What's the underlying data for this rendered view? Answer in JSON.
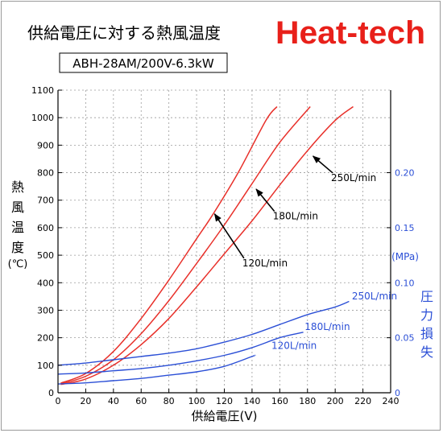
{
  "title": "供給電圧に対する熱風温度",
  "brand": "Heat-tech",
  "model": "ABH-28AM/200V-6.3kW",
  "colors": {
    "temperature": "#e8302a",
    "pressure": "#2b4fd6",
    "brand": "#e8201a",
    "axis": "#000000",
    "grid": "#9a9a9a"
  },
  "chart_data": {
    "type": "line",
    "title": "供給電圧に対する熱風温度",
    "xlabel": "供給電圧(V)",
    "ylabel_chars": [
      "熱",
      "風",
      "温",
      "度"
    ],
    "ylabel_unit": "(℃)",
    "y2label_unit": "(MPa)",
    "y2label_chars": [
      "圧",
      "力",
      "損",
      "失"
    ],
    "xlim": [
      0,
      240
    ],
    "ylim": [
      0,
      1100
    ],
    "y2lim": [
      0,
      0.275
    ],
    "xticks": [
      "0",
      "20",
      "40",
      "60",
      "80",
      "100",
      "120",
      "140",
      "160",
      "180",
      "200",
      "220",
      "240"
    ],
    "yticks": [
      "0",
      "100",
      "200",
      "300",
      "400",
      "500",
      "600",
      "700",
      "800",
      "900",
      "1000",
      "1100"
    ],
    "y2ticks": [
      "0",
      "0.05",
      "0.10",
      "0.15",
      "0.20"
    ],
    "grid": true,
    "temperature_series": [
      {
        "name": "120L/min",
        "points": [
          [
            2,
            35
          ],
          [
            20,
            70
          ],
          [
            40,
            150
          ],
          [
            60,
            270
          ],
          [
            80,
            410
          ],
          [
            100,
            560
          ],
          [
            112,
            650
          ],
          [
            130,
            800
          ],
          [
            150,
            990
          ],
          [
            158,
            1040
          ]
        ]
      },
      {
        "name": "180L/min",
        "points": [
          [
            2,
            32
          ],
          [
            20,
            60
          ],
          [
            40,
            120
          ],
          [
            60,
            215
          ],
          [
            80,
            335
          ],
          [
            100,
            470
          ],
          [
            120,
            610
          ],
          [
            140,
            760
          ],
          [
            160,
            910
          ],
          [
            182,
            1040
          ]
        ]
      },
      {
        "name": "250L/min",
        "points": [
          [
            2,
            30
          ],
          [
            20,
            50
          ],
          [
            40,
            100
          ],
          [
            60,
            175
          ],
          [
            80,
            270
          ],
          [
            100,
            385
          ],
          [
            120,
            505
          ],
          [
            140,
            625
          ],
          [
            160,
            755
          ],
          [
            180,
            880
          ],
          [
            200,
            990
          ],
          [
            213,
            1040
          ]
        ]
      }
    ],
    "pressure_series": [
      {
        "name": "120L/min",
        "points": [
          [
            0,
            0.008
          ],
          [
            20,
            0.009
          ],
          [
            40,
            0.011
          ],
          [
            60,
            0.013
          ],
          [
            80,
            0.016
          ],
          [
            100,
            0.019
          ],
          [
            120,
            0.024
          ],
          [
            140,
            0.033
          ],
          [
            142,
            0.034
          ]
        ]
      },
      {
        "name": "180L/min",
        "points": [
          [
            0,
            0.017
          ],
          [
            20,
            0.018
          ],
          [
            40,
            0.02
          ],
          [
            60,
            0.022
          ],
          [
            80,
            0.025
          ],
          [
            100,
            0.029
          ],
          [
            120,
            0.034
          ],
          [
            140,
            0.041
          ],
          [
            160,
            0.05
          ],
          [
            177,
            0.055
          ]
        ]
      },
      {
        "name": "250L/min",
        "points": [
          [
            0,
            0.025
          ],
          [
            20,
            0.027
          ],
          [
            40,
            0.03
          ],
          [
            60,
            0.033
          ],
          [
            80,
            0.036
          ],
          [
            100,
            0.04
          ],
          [
            120,
            0.046
          ],
          [
            140,
            0.053
          ],
          [
            160,
            0.062
          ],
          [
            180,
            0.071
          ],
          [
            200,
            0.078
          ],
          [
            210,
            0.083
          ]
        ]
      }
    ],
    "temperature_labels": [
      {
        "text": "250L/min",
        "label_at": [
          197,
          770
        ],
        "arrow_to": [
          184,
          860
        ]
      },
      {
        "text": "180L/min",
        "label_at": [
          155,
          630
        ],
        "arrow_to": [
          143,
          740
        ]
      },
      {
        "text": "120L/min",
        "label_at": [
          133,
          460
        ],
        "arrow_to": [
          113,
          650
        ]
      }
    ],
    "pressure_labels": [
      {
        "text": "250L/min",
        "label_at": [
          212,
          0.085
        ]
      },
      {
        "text": "180L/min",
        "label_at": [
          178,
          0.057
        ]
      },
      {
        "text": "120L/min",
        "label_at": [
          154,
          0.04
        ]
      }
    ]
  }
}
